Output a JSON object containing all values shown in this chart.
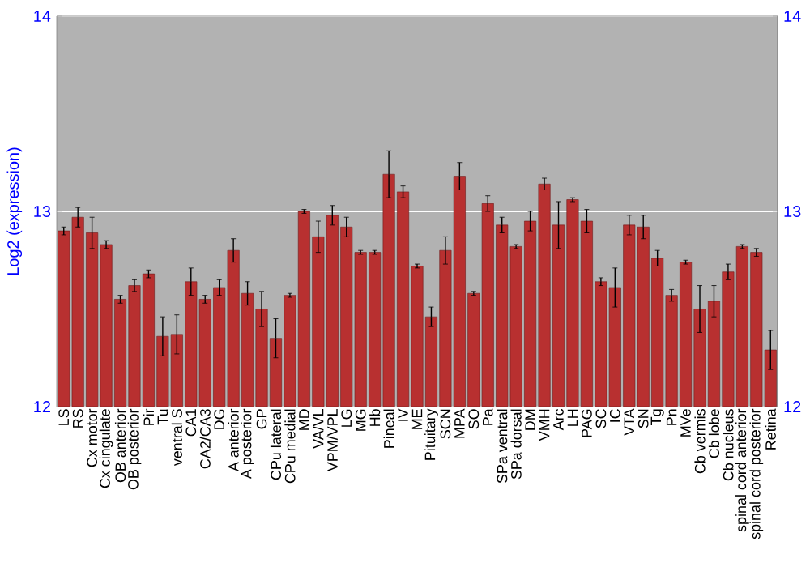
{
  "chart_data": {
    "type": "bar",
    "ylabel": "Log2 (expression)",
    "categories": [
      "LS",
      "RS",
      "Cx motor",
      "Cx cingulate",
      "OB anterior",
      "OB posterior",
      "Pir",
      "Tu",
      "ventral S",
      "CA1",
      "CA2/CA3",
      "DG",
      "A anterior",
      "A posterior",
      "GP",
      "CPu lateral",
      "CPu medial",
      "MD",
      "VA/VL",
      "VPM/VPL",
      "LG",
      "MG",
      "Hb",
      "Pineal",
      "IV",
      "ME",
      "Pituitary",
      "SCN",
      "MPA",
      "SO",
      "Pa",
      "SPa ventral",
      "SPa dorsal",
      "DM",
      "VMH",
      "Arc",
      "LH",
      "PAG",
      "SC",
      "IC",
      "VTA",
      "SN",
      "Tg",
      "Pn",
      "MVe",
      "Cb vermis",
      "Cb lobe",
      "Cb nucleus",
      "spinal cord anterior",
      "spinal cord posterior",
      "Retina"
    ],
    "values": [
      12.9,
      12.97,
      12.89,
      12.83,
      12.55,
      12.62,
      12.68,
      12.36,
      12.37,
      12.64,
      12.55,
      12.61,
      12.8,
      12.58,
      12.5,
      12.35,
      12.57,
      13.0,
      12.87,
      12.98,
      12.92,
      12.79,
      12.79,
      13.19,
      13.1,
      12.72,
      12.46,
      12.8,
      13.18,
      12.58,
      13.04,
      12.93,
      12.82,
      12.95,
      13.14,
      12.93,
      13.06,
      12.95,
      12.64,
      12.61,
      12.93,
      12.92,
      12.76,
      12.57,
      12.74,
      12.5,
      12.54,
      12.69,
      12.82,
      12.79,
      12.29
    ],
    "errors": [
      0.02,
      0.05,
      0.08,
      0.02,
      0.02,
      0.03,
      0.02,
      0.1,
      0.1,
      0.07,
      0.02,
      0.04,
      0.06,
      0.06,
      0.09,
      0.1,
      0.01,
      0.01,
      0.08,
      0.05,
      0.05,
      0.01,
      0.01,
      0.12,
      0.03,
      0.01,
      0.05,
      0.07,
      0.07,
      0.01,
      0.04,
      0.04,
      0.01,
      0.05,
      0.03,
      0.12,
      0.01,
      0.06,
      0.02,
      0.1,
      0.05,
      0.06,
      0.04,
      0.03,
      0.01,
      0.12,
      0.08,
      0.04,
      0.01,
      0.02,
      0.1
    ],
    "color": "#b83030",
    "ylim": [
      12,
      14
    ],
    "yticks": [
      12,
      13,
      14
    ],
    "y2lim": [
      12,
      14
    ],
    "y2ticks": [
      12,
      13,
      14
    ],
    "grid": "y"
  }
}
